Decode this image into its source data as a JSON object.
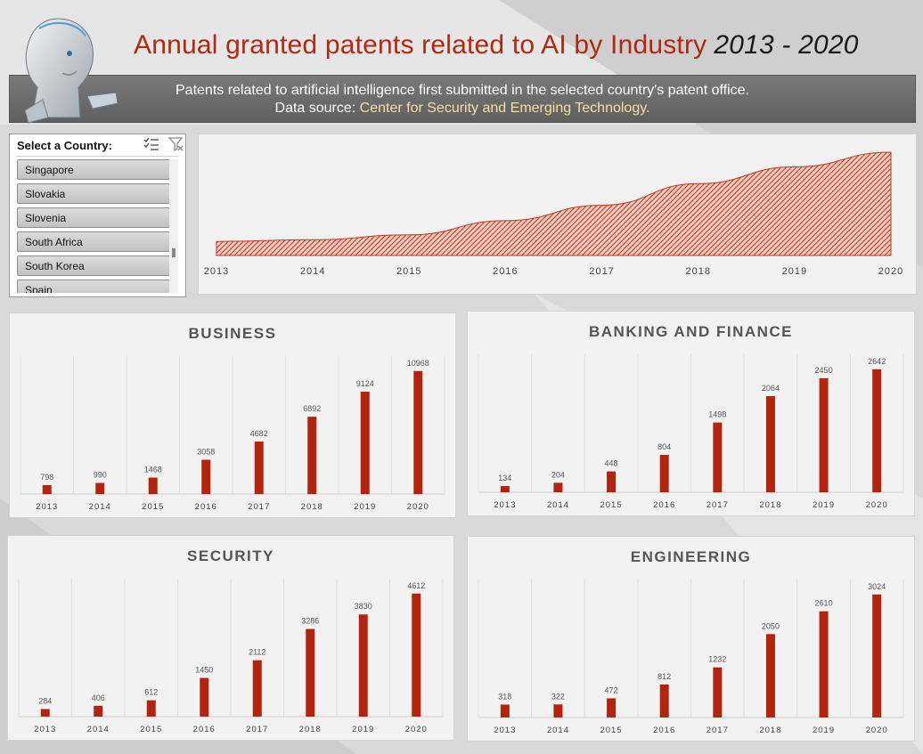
{
  "header": {
    "title": "Annual granted patents related to AI by Industry",
    "years": "2013 - 2020"
  },
  "banner": {
    "line1": "Patents related to artificial intelligence first submitted in the selected country's patent office.",
    "source_prefix": "Data source: ",
    "source_name": "Center for Security and Emerging Technology."
  },
  "slicer": {
    "title": "Select a Country:",
    "items": [
      "Singapore",
      "Slovakia",
      "Slovenia",
      "South Africa",
      "South Korea",
      "Spain"
    ]
  },
  "colors": {
    "bar": "#b3240e",
    "accent": "#b02a10"
  },
  "chart_data": [
    {
      "type": "area",
      "x": [
        "2013",
        "2014",
        "2015",
        "2016",
        "2017",
        "2018",
        "2019",
        "2020"
      ],
      "values": [
        1534,
        1922,
        3000,
        6124,
        9526,
        14306,
        18014,
        21246
      ],
      "title": ""
    },
    {
      "type": "bar",
      "title": "BUSINESS",
      "categories": [
        "2013",
        "2014",
        "2015",
        "2016",
        "2017",
        "2018",
        "2019",
        "2020"
      ],
      "values": [
        798,
        990,
        1468,
        3058,
        4682,
        6892,
        9124,
        10968
      ]
    },
    {
      "type": "bar",
      "title": "BANKING AND FINANCE",
      "categories": [
        "2013",
        "2014",
        "2015",
        "2016",
        "2017",
        "2018",
        "2019",
        "2020"
      ],
      "values": [
        134,
        204,
        448,
        804,
        1498,
        2064,
        2450,
        2642
      ]
    },
    {
      "type": "bar",
      "title": "SECURITY",
      "categories": [
        "2013",
        "2014",
        "2015",
        "2016",
        "2017",
        "2018",
        "2019",
        "2020"
      ],
      "values": [
        284,
        406,
        612,
        1450,
        2112,
        3286,
        3830,
        4612
      ]
    },
    {
      "type": "bar",
      "title": "ENGINEERING",
      "categories": [
        "2013",
        "2014",
        "2015",
        "2016",
        "2017",
        "2018",
        "2019",
        "2020"
      ],
      "values": [
        318,
        322,
        472,
        812,
        1232,
        2050,
        2610,
        3024
      ]
    }
  ]
}
